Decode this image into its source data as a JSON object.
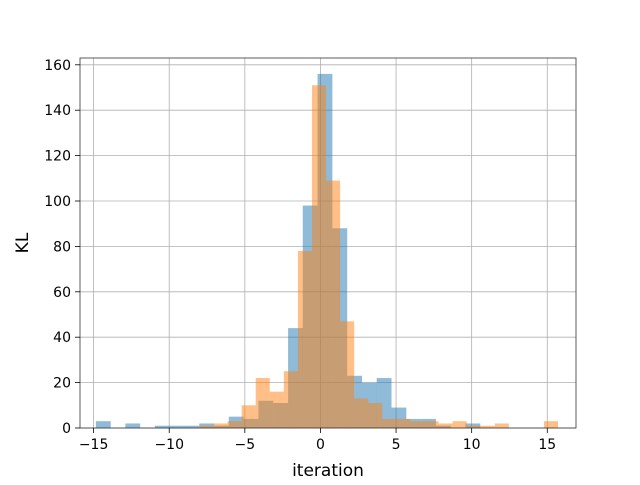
{
  "chart_data": {
    "type": "bar",
    "title": "",
    "xlabel": "iteration",
    "ylabel": "KL",
    "xlim": [
      -15.9,
      16.9
    ],
    "ylim": [
      0,
      163
    ],
    "xticks": [
      -15,
      -10,
      -5,
      0,
      5,
      10,
      15
    ],
    "xtick_labels": [
      "−15",
      "−10",
      "−5",
      "0",
      "5",
      "10",
      "15"
    ],
    "yticks": [
      0,
      20,
      40,
      60,
      80,
      100,
      120,
      140,
      160
    ],
    "ytick_labels": [
      "0",
      "20",
      "40",
      "60",
      "80",
      "100",
      "120",
      "140",
      "160"
    ],
    "grid": true,
    "legend": "none",
    "overlay": "semi-transparent (alpha 0.5), orange drawn over blue",
    "series": [
      {
        "color": "#1f77b4",
        "bin_width": 0.98,
        "bins": [
          {
            "x0": -14.85,
            "count": 3
          },
          {
            "x0": -12.9,
            "count": 2
          },
          {
            "x0": -10.95,
            "count": 1
          },
          {
            "x0": -9.97,
            "count": 1
          },
          {
            "x0": -8.99,
            "count": 1
          },
          {
            "x0": -8.01,
            "count": 2
          },
          {
            "x0": -7.03,
            "count": 1
          },
          {
            "x0": -6.06,
            "count": 5
          },
          {
            "x0": -5.08,
            "count": 4
          },
          {
            "x0": -4.1,
            "count": 12
          },
          {
            "x0": -3.12,
            "count": 11
          },
          {
            "x0": -2.14,
            "count": 44
          },
          {
            "x0": -1.17,
            "count": 98
          },
          {
            "x0": -0.19,
            "count": 156
          },
          {
            "x0": 0.79,
            "count": 88
          },
          {
            "x0": 1.77,
            "count": 23
          },
          {
            "x0": 2.75,
            "count": 20
          },
          {
            "x0": 3.72,
            "count": 22
          },
          {
            "x0": 4.7,
            "count": 9
          },
          {
            "x0": 5.68,
            "count": 4
          },
          {
            "x0": 6.66,
            "count": 4
          },
          {
            "x0": 7.64,
            "count": 1
          },
          {
            "x0": 9.59,
            "count": 2
          }
        ]
      },
      {
        "color": "#ff7f0e",
        "bin_width": 0.93,
        "bins": [
          {
            "x0": -8.0,
            "count": 1
          },
          {
            "x0": -7.07,
            "count": 2
          },
          {
            "x0": -6.14,
            "count": 3
          },
          {
            "x0": -5.21,
            "count": 10
          },
          {
            "x0": -4.28,
            "count": 22
          },
          {
            "x0": -3.35,
            "count": 16
          },
          {
            "x0": -2.42,
            "count": 25
          },
          {
            "x0": -1.49,
            "count": 78
          },
          {
            "x0": -0.56,
            "count": 151
          },
          {
            "x0": 0.37,
            "count": 109
          },
          {
            "x0": 1.3,
            "count": 47
          },
          {
            "x0": 2.23,
            "count": 13
          },
          {
            "x0": 3.16,
            "count": 11
          },
          {
            "x0": 4.09,
            "count": 4
          },
          {
            "x0": 5.02,
            "count": 4
          },
          {
            "x0": 5.95,
            "count": 3
          },
          {
            "x0": 6.88,
            "count": 3
          },
          {
            "x0": 7.81,
            "count": 2
          },
          {
            "x0": 8.74,
            "count": 3
          },
          {
            "x0": 9.67,
            "count": 1
          },
          {
            "x0": 10.6,
            "count": 1
          },
          {
            "x0": 11.53,
            "count": 2
          },
          {
            "x0": 14.78,
            "count": 3
          }
        ]
      }
    ]
  }
}
